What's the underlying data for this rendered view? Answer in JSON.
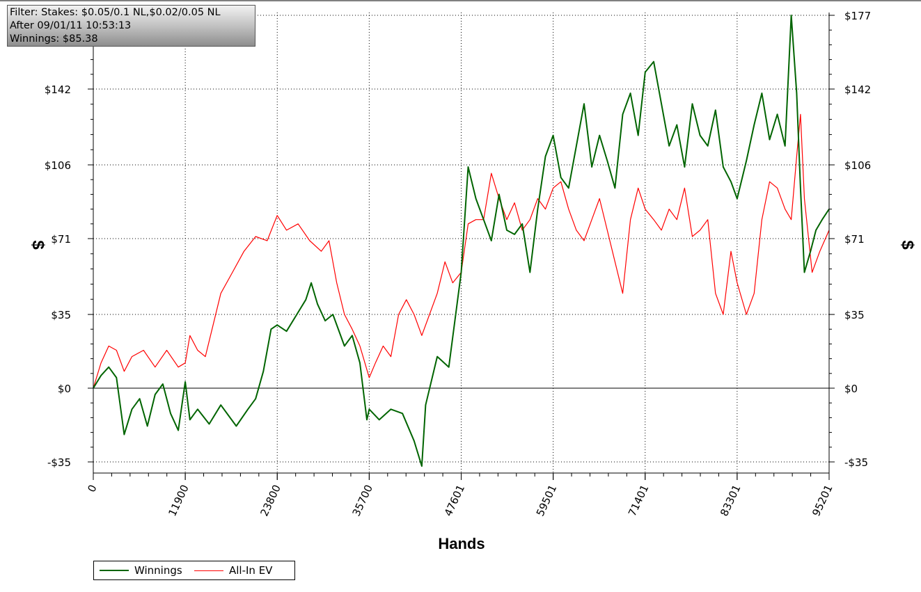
{
  "filter": {
    "line1": "Filter: Stakes: $0.05/0.1 NL,$0.02/0.05 NL",
    "line2": "After 09/01/11 10:53:13",
    "line3": "Winnings: $85.38"
  },
  "chart_data": {
    "type": "line",
    "title": "",
    "xlabel": "Hands",
    "ylabel": "$",
    "xlim": [
      0,
      95201
    ],
    "ylim": [
      -40,
      177
    ],
    "grid": true,
    "legend_placement": "bottom-left",
    "x_ticks": [
      0,
      11900,
      23800,
      35700,
      47601,
      59501,
      71401,
      83301,
      95201
    ],
    "x_tick_labels": [
      "0",
      "11900",
      "23800",
      "35700",
      "47601",
      "59501",
      "71401",
      "83301",
      "95201"
    ],
    "y_ticks": [
      -35,
      0,
      35,
      71,
      106,
      142,
      177
    ],
    "y_tick_labels": [
      "-$35",
      "$0",
      "$35",
      "$71",
      "$106",
      "$142",
      "$177"
    ],
    "series": [
      {
        "name": "Winnings",
        "color": "#006400",
        "x": [
          0,
          1000,
          2000,
          3000,
          4000,
          5000,
          6000,
          7000,
          8000,
          9000,
          10000,
          11000,
          11900,
          12500,
          13500,
          15000,
          16500,
          17500,
          18500,
          20000,
          21000,
          22000,
          23000,
          23800,
          25000,
          26500,
          27500,
          28200,
          29000,
          30000,
          31000,
          32500,
          33500,
          34500,
          35400,
          35700,
          37000,
          38500,
          40000,
          41500,
          42500,
          43000,
          44500,
          46000,
          47000,
          47601,
          48500,
          49500,
          50500,
          51500,
          52500,
          53500,
          54500,
          55500,
          56500,
          57500,
          58500,
          59501,
          60500,
          61500,
          62500,
          63500,
          64500,
          65500,
          66500,
          67500,
          68500,
          69500,
          70500,
          71401,
          72500,
          73500,
          74500,
          75500,
          76500,
          77500,
          78500,
          79500,
          80500,
          81500,
          82500,
          83301,
          84500,
          85500,
          86500,
          87500,
          88500,
          89500,
          90300,
          91000,
          91500,
          92000,
          92800,
          93500,
          94300,
          95201
        ],
        "y": [
          0,
          6,
          10,
          5,
          -22,
          -10,
          -5,
          -18,
          -3,
          2,
          -12,
          -20,
          3,
          -15,
          -10,
          -17,
          -8,
          -13,
          -18,
          -10,
          -5,
          8,
          28,
          30,
          27,
          36,
          42,
          50,
          40,
          32,
          35,
          20,
          25,
          12,
          -15,
          -10,
          -15,
          -10,
          -12,
          -25,
          -37,
          -8,
          15,
          10,
          38,
          55,
          105,
          90,
          80,
          70,
          92,
          75,
          73,
          78,
          55,
          85,
          110,
          120,
          100,
          95,
          115,
          135,
          105,
          120,
          108,
          95,
          130,
          140,
          120,
          150,
          155,
          135,
          115,
          125,
          105,
          135,
          120,
          115,
          132,
          105,
          98,
          90,
          108,
          125,
          140,
          118,
          130,
          115,
          177,
          140,
          95,
          55,
          65,
          75,
          80,
          85
        ],
        "final_value": 85.38
      },
      {
        "name": "All-In EV",
        "color": "#ff0000",
        "x": [
          0,
          1000,
          2000,
          3000,
          4000,
          5000,
          6500,
          8000,
          9500,
          11000,
          11900,
          12500,
          13500,
          14500,
          15500,
          16500,
          18000,
          19500,
          21000,
          22500,
          23800,
          25000,
          26500,
          28000,
          29500,
          30500,
          31500,
          32500,
          33500,
          34500,
          35700,
          36500,
          37500,
          38500,
          39500,
          40500,
          41500,
          42500,
          43500,
          44500,
          45500,
          46500,
          47601,
          48500,
          49500,
          50500,
          51500,
          52500,
          53500,
          54500,
          55500,
          56500,
          57500,
          58500,
          59501,
          60500,
          61500,
          62500,
          63500,
          64500,
          65500,
          66500,
          67500,
          68500,
          69500,
          70500,
          71401,
          72500,
          73500,
          74500,
          75500,
          76500,
          77500,
          78500,
          79500,
          80500,
          81500,
          82500,
          83301,
          84500,
          85500,
          86500,
          87500,
          88500,
          89500,
          90300,
          91000,
          91500,
          92000,
          93000,
          94000,
          95201
        ],
        "y": [
          0,
          12,
          20,
          18,
          8,
          15,
          18,
          10,
          18,
          10,
          12,
          25,
          18,
          15,
          30,
          45,
          55,
          65,
          72,
          70,
          82,
          75,
          78,
          70,
          65,
          70,
          50,
          35,
          28,
          20,
          5,
          12,
          20,
          15,
          35,
          42,
          35,
          25,
          35,
          45,
          60,
          50,
          55,
          78,
          80,
          80,
          102,
          90,
          80,
          88,
          75,
          80,
          90,
          85,
          95,
          98,
          85,
          75,
          70,
          80,
          90,
          75,
          60,
          45,
          80,
          95,
          85,
          80,
          75,
          85,
          80,
          95,
          72,
          75,
          80,
          45,
          35,
          65,
          50,
          35,
          45,
          80,
          98,
          95,
          85,
          80,
          110,
          130,
          90,
          55,
          65,
          75
        ]
      }
    ]
  },
  "legend": {
    "winnings_label": "Winnings",
    "allin_label": "All-In EV"
  }
}
